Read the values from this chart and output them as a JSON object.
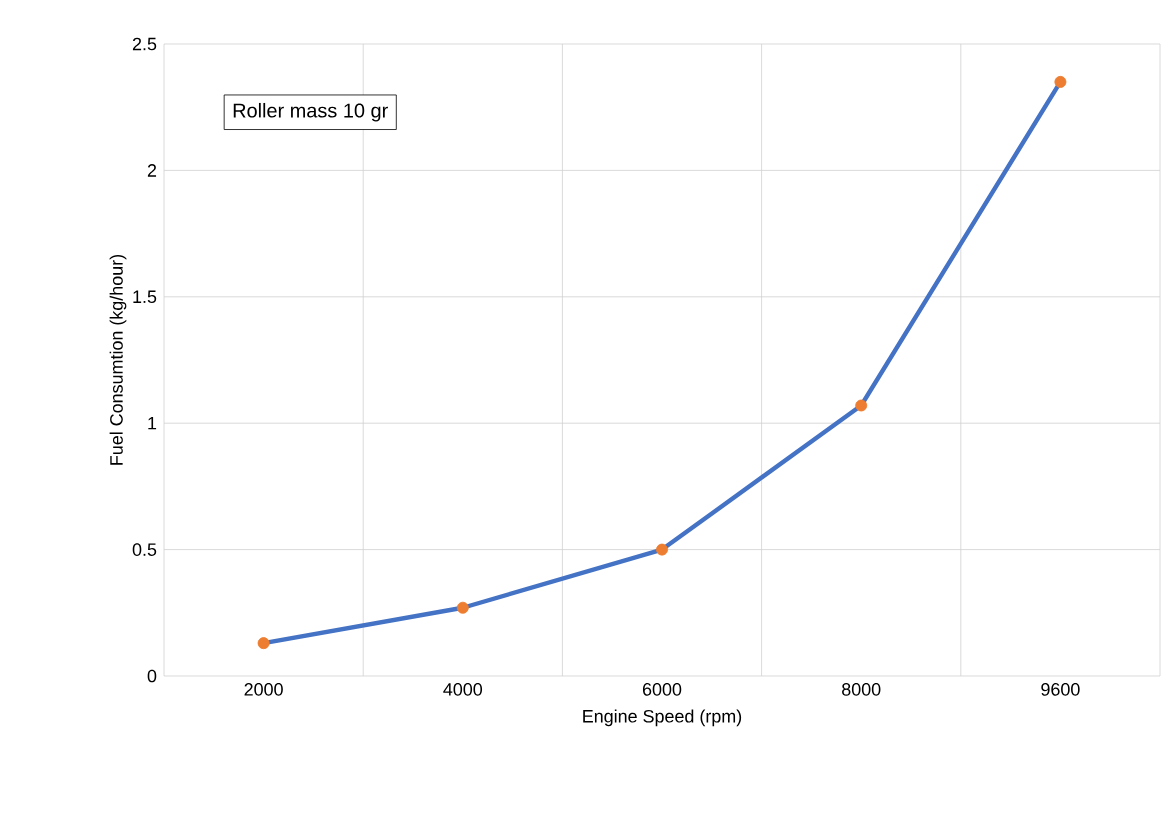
{
  "chart_data": {
    "type": "line",
    "xlabel": "Engine Speed (rpm)",
    "ylabel": "Fuel Consumtion (kg/hour)",
    "categories": [
      "2000",
      "4000",
      "6000",
      "8000",
      "9600"
    ],
    "series": [
      {
        "color": "#4472c4",
        "marker": "none",
        "values": [
          0.13,
          0.27,
          0.5,
          1.07,
          2.35
        ]
      },
      {
        "type": "scatter",
        "color": "#ed7d31",
        "marker": "circle",
        "values": [
          0.13,
          0.27,
          0.5,
          1.07,
          2.35
        ]
      }
    ],
    "ylim": [
      0,
      2.5
    ],
    "yticks": [
      0,
      0.5,
      1,
      1.5,
      2,
      2.5
    ],
    "grid": true,
    "line_style": "solid",
    "annotations": [
      "Roller mass 10 gr"
    ]
  }
}
